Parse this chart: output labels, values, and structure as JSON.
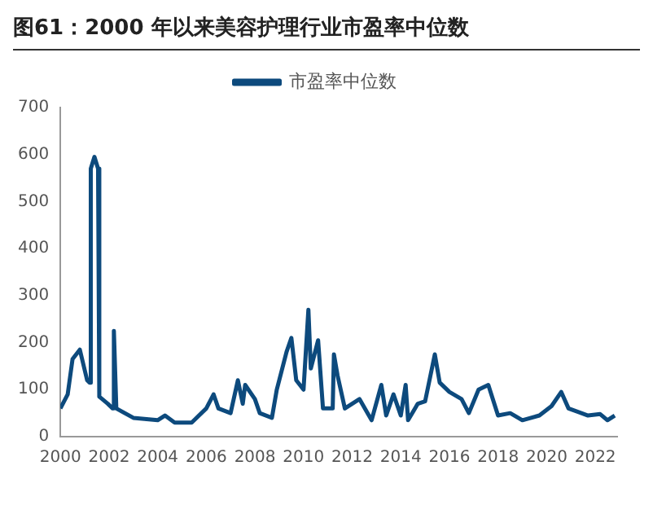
{
  "chart_data": {
    "type": "line",
    "title": "图61：2000 年以来美容护理行业市盈率中位数",
    "xlim": [
      2000,
      2022.9
    ],
    "xticks": [
      2000,
      2002,
      2004,
      2006,
      2008,
      2010,
      2012,
      2014,
      2016,
      2018,
      2020,
      2022
    ],
    "ylim": [
      0,
      700
    ],
    "yticks": [
      0,
      100,
      200,
      300,
      400,
      500,
      600,
      700
    ],
    "grid": false,
    "legend": "top",
    "marker": "none",
    "series": [
      {
        "name": "市盈率中位数",
        "color": "#0d4a7d",
        "x": [
          2000,
          2000.3,
          2000.5,
          2000.8,
          2001.1,
          2001.2,
          2001.25,
          2001.4,
          2001.55,
          2001.6,
          2001.95,
          2002.15,
          2002.2,
          2002.3,
          2003.0,
          2004.0,
          2004.3,
          2004.7,
          2005.4,
          2006.0,
          2006.3,
          2006.5,
          2007.0,
          2007.3,
          2007.5,
          2007.6,
          2008.0,
          2008.2,
          2008.7,
          2008.9,
          2009.3,
          2009.5,
          2009.7,
          2010.0,
          2010.2,
          2010.3,
          2010.6,
          2010.8,
          2011.2,
          2011.25,
          2011.4,
          2011.7,
          2012.3,
          2012.8,
          2013.2,
          2013.4,
          2013.7,
          2014.0,
          2014.2,
          2014.3,
          2014.7,
          2015.0,
          2015.4,
          2015.6,
          2016.0,
          2016.5,
          2016.8,
          2017.2,
          2017.6,
          2018.0,
          2018.5,
          2019.0,
          2019.7,
          2020.2,
          2020.6,
          2020.9,
          2021.7,
          2022.2,
          2022.5,
          2022.8
        ],
        "values": [
          60,
          90,
          165,
          185,
          120,
          115,
          570,
          595,
          570,
          85,
          70,
          60,
          225,
          60,
          40,
          35,
          45,
          30,
          30,
          60,
          90,
          60,
          50,
          120,
          70,
          110,
          80,
          50,
          40,
          100,
          180,
          210,
          120,
          100,
          270,
          145,
          205,
          60,
          60,
          175,
          130,
          60,
          80,
          35,
          110,
          45,
          90,
          45,
          110,
          35,
          70,
          75,
          175,
          115,
          95,
          80,
          50,
          100,
          110,
          45,
          50,
          35,
          45,
          65,
          95,
          60,
          45,
          48,
          35,
          45
        ]
      }
    ]
  }
}
